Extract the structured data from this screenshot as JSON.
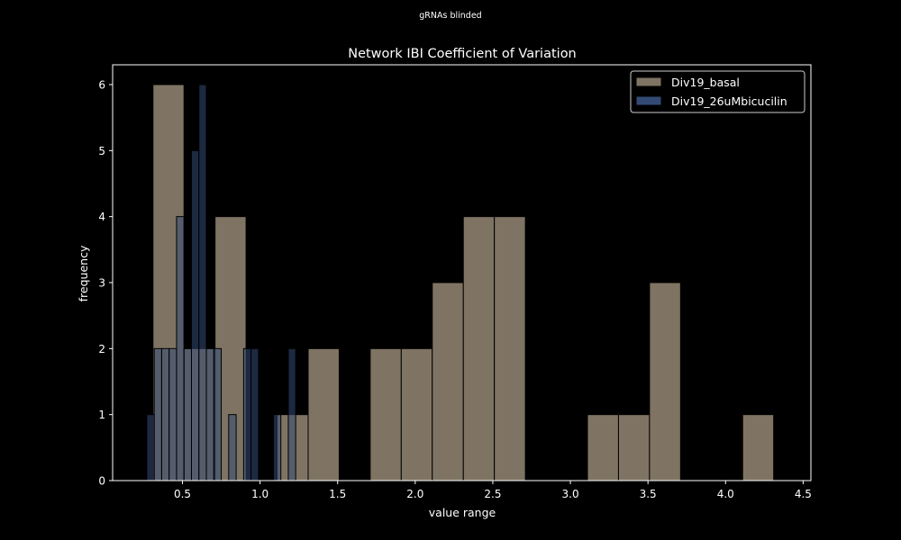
{
  "suptitle": "gRNAs blinded",
  "colors": {
    "background": "#000000",
    "series_basal": "#7f7463",
    "series_bicucilin": "#334a74",
    "overlap": "#7386b1",
    "edge": "#000000",
    "text": "#ffffff"
  },
  "chart_data": {
    "type": "histogram",
    "title": "Network IBI Coefficient of Variation",
    "xlabel": "value range",
    "ylabel": "frequency",
    "xlim": [
      0.05,
      4.55
    ],
    "ylim": [
      0,
      6.3
    ],
    "xticks": [
      "0.5",
      "1.0",
      "1.5",
      "2.0",
      "2.5",
      "3.0",
      "3.5",
      "4.0",
      "4.5"
    ],
    "yticks": [
      "0",
      "1",
      "2",
      "3",
      "4",
      "5",
      "6"
    ],
    "legend": {
      "location": "upper right",
      "entries": [
        "Div19_basal",
        "Div19_26uMbicucilin"
      ]
    },
    "series": [
      {
        "name": "Div19_basal",
        "color": "#7f7463",
        "bins": [
          {
            "x0": 0.31,
            "x1": 0.51,
            "count": 6
          },
          {
            "x0": 0.51,
            "x1": 0.71,
            "count": 2
          },
          {
            "x0": 0.71,
            "x1": 0.91,
            "count": 4
          },
          {
            "x0": 0.91,
            "x1": 1.11,
            "count": 0
          },
          {
            "x0": 1.11,
            "x1": 1.31,
            "count": 1
          },
          {
            "x0": 1.31,
            "x1": 1.51,
            "count": 2
          },
          {
            "x0": 1.51,
            "x1": 1.71,
            "count": 0
          },
          {
            "x0": 1.71,
            "x1": 1.91,
            "count": 2
          },
          {
            "x0": 1.91,
            "x1": 2.11,
            "count": 2
          },
          {
            "x0": 2.11,
            "x1": 2.31,
            "count": 3
          },
          {
            "x0": 2.31,
            "x1": 2.51,
            "count": 4
          },
          {
            "x0": 2.51,
            "x1": 2.71,
            "count": 4
          },
          {
            "x0": 2.71,
            "x1": 2.91,
            "count": 0
          },
          {
            "x0": 2.91,
            "x1": 3.11,
            "count": 0
          },
          {
            "x0": 3.11,
            "x1": 3.31,
            "count": 1
          },
          {
            "x0": 3.31,
            "x1": 3.51,
            "count": 1
          },
          {
            "x0": 3.51,
            "x1": 3.71,
            "count": 3
          },
          {
            "x0": 3.71,
            "x1": 3.91,
            "count": 0
          },
          {
            "x0": 3.91,
            "x1": 4.11,
            "count": 0
          },
          {
            "x0": 4.11,
            "x1": 4.31,
            "count": 1
          }
        ]
      },
      {
        "name": "Div19_26uMbicucilin",
        "color": "#334a74",
        "bins": [
          {
            "x0": 0.27,
            "x1": 0.318,
            "count": 1
          },
          {
            "x0": 0.318,
            "x1": 0.366,
            "count": 2
          },
          {
            "x0": 0.366,
            "x1": 0.414,
            "count": 2
          },
          {
            "x0": 0.414,
            "x1": 0.462,
            "count": 2
          },
          {
            "x0": 0.462,
            "x1": 0.51,
            "count": 4
          },
          {
            "x0": 0.51,
            "x1": 0.558,
            "count": 2
          },
          {
            "x0": 0.558,
            "x1": 0.606,
            "count": 5
          },
          {
            "x0": 0.606,
            "x1": 0.654,
            "count": 6
          },
          {
            "x0": 0.654,
            "x1": 0.702,
            "count": 2
          },
          {
            "x0": 0.702,
            "x1": 0.75,
            "count": 2
          },
          {
            "x0": 0.75,
            "x1": 0.798,
            "count": 0
          },
          {
            "x0": 0.798,
            "x1": 0.846,
            "count": 1
          },
          {
            "x0": 0.846,
            "x1": 0.894,
            "count": 0
          },
          {
            "x0": 0.894,
            "x1": 0.942,
            "count": 2
          },
          {
            "x0": 0.942,
            "x1": 0.99,
            "count": 2
          },
          {
            "x0": 0.99,
            "x1": 1.038,
            "count": 0
          },
          {
            "x0": 1.038,
            "x1": 1.086,
            "count": 0
          },
          {
            "x0": 1.086,
            "x1": 1.134,
            "count": 1
          },
          {
            "x0": 1.134,
            "x1": 1.182,
            "count": 0
          },
          {
            "x0": 1.182,
            "x1": 1.23,
            "count": 2
          }
        ]
      }
    ]
  }
}
